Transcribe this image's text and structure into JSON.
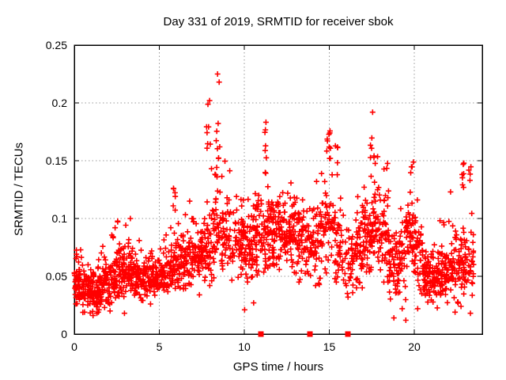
{
  "chart_data": {
    "type": "scatter",
    "title": "Day 331 of 2019, SRMTID for receiver sbok",
    "xlabel": "GPS time / hours",
    "ylabel": "SRMTID / TECUs",
    "xlim": [
      0,
      24
    ],
    "ylim": [
      0,
      0.25
    ],
    "xticks": [
      {
        "v": 0,
        "label": "0"
      },
      {
        "v": 5,
        "label": "5"
      },
      {
        "v": 10,
        "label": "10"
      },
      {
        "v": 15,
        "label": "15"
      },
      {
        "v": 20,
        "label": "20"
      }
    ],
    "yticks": [
      {
        "v": 0,
        "label": "0"
      },
      {
        "v": 0.05,
        "label": "0.05"
      },
      {
        "v": 0.1,
        "label": "0.1"
      },
      {
        "v": 0.15,
        "label": "0.15"
      },
      {
        "v": 0.2,
        "label": "0.2"
      },
      {
        "v": 0.25,
        "label": "0.25"
      }
    ],
    "grid": {
      "x_at": [
        5,
        10,
        15,
        20
      ],
      "y_at": [
        0.05,
        0.1,
        0.15,
        0.2
      ],
      "style": "dotted"
    },
    "legend": "none",
    "marker": {
      "shape": "plus",
      "size": 7
    },
    "colors": {
      "marker": "#ff0000",
      "grid": "#999999",
      "frame": "#000000",
      "text": "#000000",
      "background": "#ffffff"
    },
    "bands_format": [
      "h_start",
      "h_end",
      "count",
      "y_center",
      "y_spread",
      "y_min",
      "y_max"
    ],
    "bands": [
      [
        0.0,
        0.5,
        55,
        0.045,
        0.012,
        0.024,
        0.075
      ],
      [
        0.5,
        1.0,
        60,
        0.04,
        0.012,
        0.018,
        0.07
      ],
      [
        1.0,
        1.5,
        60,
        0.038,
        0.012,
        0.018,
        0.068
      ],
      [
        1.5,
        2.0,
        55,
        0.042,
        0.013,
        0.02,
        0.082
      ],
      [
        2.0,
        2.5,
        55,
        0.048,
        0.014,
        0.022,
        0.09
      ],
      [
        2.5,
        3.0,
        55,
        0.055,
        0.015,
        0.025,
        0.098
      ],
      [
        3.0,
        3.5,
        50,
        0.055,
        0.015,
        0.028,
        0.096
      ],
      [
        3.5,
        4.0,
        50,
        0.05,
        0.013,
        0.028,
        0.086
      ],
      [
        4.0,
        4.5,
        50,
        0.048,
        0.013,
        0.026,
        0.08
      ],
      [
        4.5,
        5.0,
        50,
        0.05,
        0.013,
        0.028,
        0.085
      ],
      [
        5.0,
        5.5,
        45,
        0.055,
        0.013,
        0.032,
        0.09
      ],
      [
        5.5,
        6.0,
        45,
        0.058,
        0.015,
        0.034,
        0.1
      ],
      [
        6.0,
        6.5,
        45,
        0.06,
        0.015,
        0.035,
        0.105
      ],
      [
        6.5,
        7.0,
        45,
        0.065,
        0.016,
        0.038,
        0.115
      ],
      [
        7.0,
        7.5,
        45,
        0.068,
        0.017,
        0.038,
        0.12
      ],
      [
        7.5,
        8.0,
        45,
        0.075,
        0.019,
        0.04,
        0.14
      ],
      [
        8.0,
        8.7,
        55,
        0.09,
        0.028,
        0.045,
        0.18
      ],
      [
        8.7,
        9.2,
        45,
        0.085,
        0.023,
        0.05,
        0.15
      ],
      [
        9.2,
        10.0,
        60,
        0.08,
        0.021,
        0.045,
        0.13
      ],
      [
        10.0,
        10.5,
        45,
        0.075,
        0.021,
        0.038,
        0.125
      ],
      [
        10.5,
        11.0,
        45,
        0.085,
        0.023,
        0.045,
        0.14
      ],
      [
        11.0,
        11.5,
        45,
        0.085,
        0.023,
        0.045,
        0.135
      ],
      [
        11.5,
        12.0,
        50,
        0.088,
        0.021,
        0.05,
        0.135
      ],
      [
        12.0,
        12.5,
        50,
        0.09,
        0.019,
        0.055,
        0.138
      ],
      [
        12.5,
        13.0,
        50,
        0.088,
        0.021,
        0.05,
        0.135
      ],
      [
        13.0,
        13.5,
        45,
        0.08,
        0.021,
        0.045,
        0.128
      ],
      [
        13.5,
        14.0,
        40,
        0.075,
        0.019,
        0.04,
        0.12
      ],
      [
        14.0,
        14.5,
        40,
        0.08,
        0.023,
        0.04,
        0.135
      ],
      [
        14.5,
        15.2,
        50,
        0.095,
        0.027,
        0.05,
        0.155
      ],
      [
        15.2,
        15.7,
        40,
        0.08,
        0.025,
        0.038,
        0.14
      ],
      [
        15.7,
        16.5,
        45,
        0.06,
        0.019,
        0.03,
        0.105
      ],
      [
        16.5,
        17.0,
        45,
        0.075,
        0.023,
        0.04,
        0.13
      ],
      [
        17.0,
        17.5,
        50,
        0.09,
        0.025,
        0.05,
        0.15
      ],
      [
        17.5,
        18.0,
        50,
        0.095,
        0.025,
        0.05,
        0.155
      ],
      [
        18.0,
        18.5,
        45,
        0.09,
        0.025,
        0.045,
        0.155
      ],
      [
        18.5,
        19.0,
        45,
        0.07,
        0.023,
        0.03,
        0.125
      ],
      [
        19.0,
        19.5,
        40,
        0.06,
        0.023,
        0.022,
        0.11
      ],
      [
        19.5,
        20.0,
        45,
        0.085,
        0.026,
        0.04,
        0.14
      ],
      [
        20.0,
        20.5,
        45,
        0.07,
        0.023,
        0.03,
        0.12
      ],
      [
        20.5,
        21.0,
        50,
        0.05,
        0.015,
        0.022,
        0.085
      ],
      [
        21.0,
        21.5,
        50,
        0.048,
        0.015,
        0.02,
        0.085
      ],
      [
        21.5,
        22.0,
        50,
        0.055,
        0.017,
        0.025,
        0.1
      ],
      [
        22.0,
        22.5,
        45,
        0.065,
        0.021,
        0.03,
        0.13
      ],
      [
        22.5,
        23.0,
        45,
        0.06,
        0.021,
        0.025,
        0.12
      ],
      [
        23.0,
        23.5,
        35,
        0.06,
        0.021,
        0.028,
        0.12
      ]
    ],
    "columns_format": [
      "h_center",
      "h_jitter",
      "count",
      "y_min",
      "y_max"
    ],
    "columns": [
      [
        5.88,
        0.06,
        6,
        0.105,
        0.13
      ],
      [
        7.9,
        0.12,
        7,
        0.145,
        0.2
      ],
      [
        8.4,
        0.12,
        9,
        0.13,
        0.2
      ],
      [
        11.25,
        0.05,
        8,
        0.138,
        0.191
      ],
      [
        14.97,
        0.12,
        9,
        0.15,
        0.186
      ],
      [
        15.4,
        0.1,
        4,
        0.148,
        0.168
      ],
      [
        17.5,
        0.15,
        5,
        0.15,
        0.172
      ],
      [
        19.85,
        0.1,
        4,
        0.138,
        0.15
      ],
      [
        22.9,
        0.1,
        7,
        0.125,
        0.155
      ],
      [
        23.25,
        0.1,
        4,
        0.133,
        0.152
      ]
    ],
    "outliers": [
      [
        8.43,
        0.225
      ],
      [
        8.52,
        0.218
      ],
      [
        7.96,
        0.202
      ],
      [
        17.55,
        0.192
      ],
      [
        10.02,
        0.021
      ],
      [
        10.55,
        0.027
      ],
      [
        0.6,
        0.019
      ],
      [
        1.1,
        0.016
      ],
      [
        1.45,
        0.021
      ],
      [
        2.1,
        0.02
      ],
      [
        2.95,
        0.018
      ],
      [
        3.3,
        0.1
      ],
      [
        2.4,
        0.092
      ],
      [
        7.36,
        0.034
      ],
      [
        18.8,
        0.014
      ],
      [
        19.5,
        0.012
      ],
      [
        20.2,
        0.022
      ],
      [
        22.4,
        0.019
      ],
      [
        22.75,
        0.024
      ],
      [
        23.3,
        0.018
      ],
      [
        16.1,
        0.032
      ]
    ],
    "axis_markers": {
      "shape": "filled-square",
      "size": 7,
      "y": 0,
      "x": [
        10.97,
        13.85,
        16.09
      ]
    }
  }
}
